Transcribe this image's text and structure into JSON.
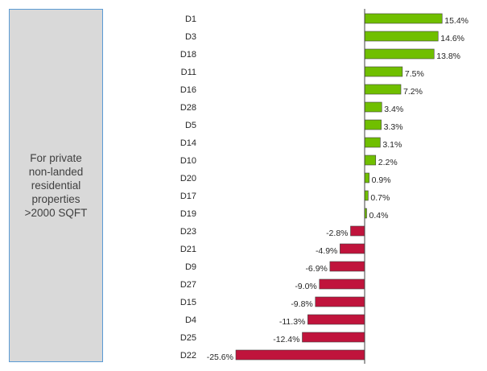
{
  "note": {
    "lines": [
      "For private",
      "non-landed",
      "residential",
      "properties",
      ">2000 SQFT"
    ]
  },
  "chart_data": {
    "type": "bar",
    "orientation": "horizontal",
    "title": "",
    "xlabel": "",
    "ylabel": "",
    "categories": [
      "D1",
      "D3",
      "D18",
      "D11",
      "D16",
      "D28",
      "D5",
      "D14",
      "D10",
      "D20",
      "D17",
      "D19",
      "D23",
      "D21",
      "D9",
      "D27",
      "D15",
      "D4",
      "D25",
      "D22"
    ],
    "values": [
      15.4,
      14.6,
      13.8,
      7.5,
      7.2,
      3.4,
      3.3,
      3.1,
      2.2,
      0.9,
      0.7,
      0.4,
      -2.8,
      -4.9,
      -6.9,
      -9.0,
      -9.8,
      -11.3,
      -12.4,
      -25.6
    ],
    "labels": [
      "15.4%",
      "14.6%",
      "13.8%",
      "7.5%",
      "7.2%",
      "3.4%",
      "3.3%",
      "3.1%",
      "2.2%",
      "0.9%",
      "0.7%",
      "0.4%",
      "-2.8%",
      "-4.9%",
      "-6.9%",
      "-9.0%",
      "-9.8%",
      "-11.3%",
      "-12.4%",
      "-25.6%"
    ],
    "positive_color": "#70bf00",
    "negative_color": "#c0143c",
    "axis_color": "#404040",
    "grid": false,
    "legend": false
  }
}
